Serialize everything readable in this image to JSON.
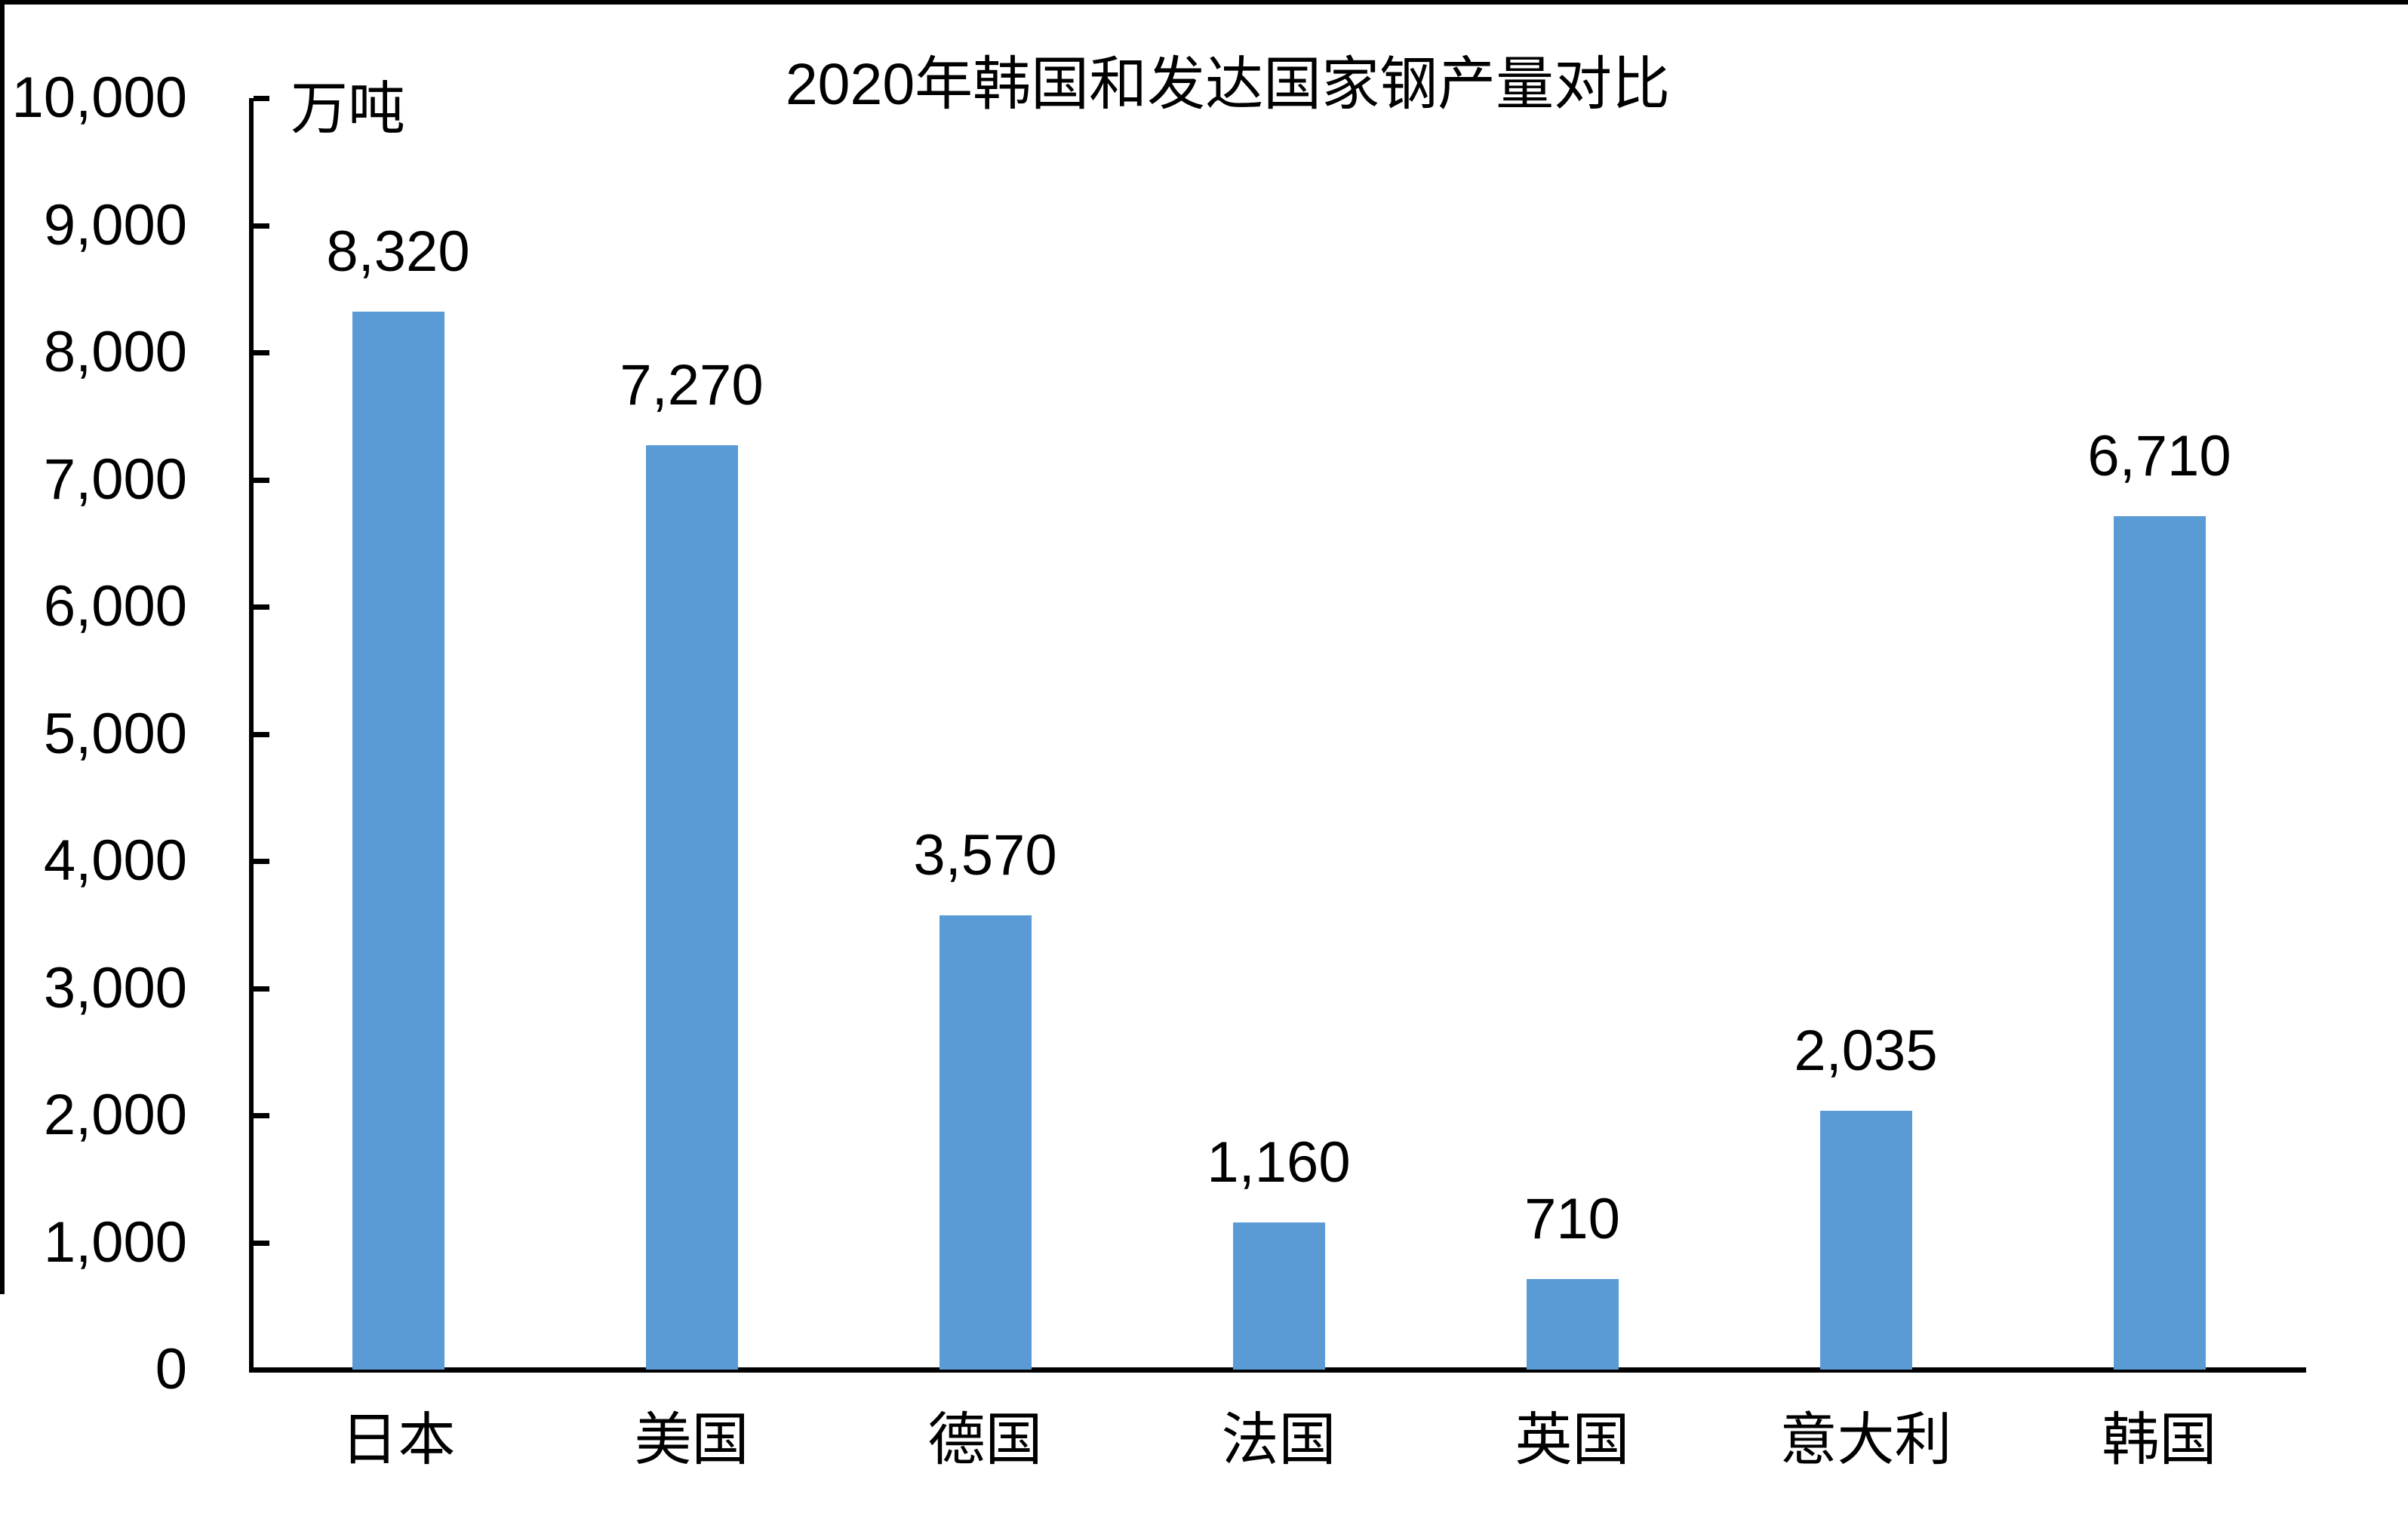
{
  "chart_data": {
    "type": "bar",
    "title": "2020年韩国和发达国家钢产量对比",
    "unit_label": "万吨",
    "categories": [
      "日本",
      "美国",
      "德国",
      "法国",
      "英国",
      "意大利",
      "韩国"
    ],
    "values": [
      8320,
      7270,
      3570,
      1160,
      710,
      2035,
      6710
    ],
    "value_labels": [
      "8,320",
      "7,270",
      "3,570",
      "1,160",
      "710",
      "2,035",
      "6,710"
    ],
    "ylim": [
      0,
      10000
    ],
    "ytick_step": 1000,
    "ytick_labels": [
      "0",
      "1,000",
      "2,000",
      "3,000",
      "4,000",
      "5,000",
      "6,000",
      "7,000",
      "8,000",
      "9,000",
      "10,000"
    ],
    "bar_color": "#5B9BD5",
    "axis_color": "#000000",
    "text_color": "#000000",
    "grid": false,
    "legend_position": "none",
    "data_labels": "above bars",
    "tick_direction": "inside"
  }
}
